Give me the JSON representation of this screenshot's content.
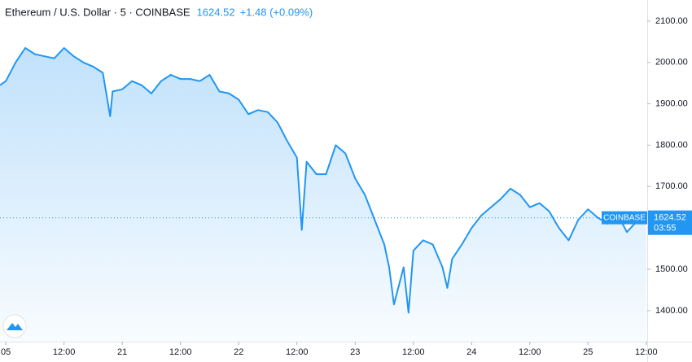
{
  "chart_data": {
    "type": "area",
    "title": "Ethereum / U.S. Dollar · 5 · COINBASE",
    "last_price": 1624.52,
    "change_label": "+1.48 (+0.09%)",
    "price_source": "COINBASE",
    "countdown": "03:55",
    "color": "#2196f3",
    "x": [
      -1.2,
      0,
      2,
      4,
      6,
      8,
      10,
      12,
      14,
      16,
      18,
      20,
      21.5,
      22,
      24,
      26,
      28,
      30,
      32,
      34,
      36,
      38,
      40,
      42,
      44,
      46,
      48,
      50,
      52,
      54,
      56,
      58,
      60,
      61,
      62,
      64,
      66,
      68,
      70,
      72,
      74,
      76,
      78,
      79,
      80,
      82,
      83,
      84,
      86,
      88,
      90,
      91,
      92,
      94,
      96,
      98,
      100,
      102,
      104,
      106,
      108,
      110,
      112,
      114,
      116,
      118,
      120,
      122,
      124,
      126,
      128,
      130,
      132
    ],
    "values": [
      1945,
      1955,
      2000,
      2035,
      2020,
      2015,
      2010,
      2035,
      2015,
      2000,
      1990,
      1975,
      1870,
      1930,
      1935,
      1955,
      1945,
      1925,
      1955,
      1970,
      1960,
      1960,
      1955,
      1970,
      1930,
      1925,
      1910,
      1875,
      1885,
      1880,
      1855,
      1810,
      1770,
      1595,
      1760,
      1730,
      1730,
      1800,
      1780,
      1720,
      1680,
      1620,
      1560,
      1505,
      1415,
      1505,
      1395,
      1545,
      1570,
      1560,
      1505,
      1455,
      1525,
      1560,
      1600,
      1630,
      1650,
      1670,
      1695,
      1680,
      1650,
      1660,
      1640,
      1600,
      1570,
      1620,
      1645,
      1625,
      1610,
      1635,
      1590,
      1615,
      1624.52
    ],
    "xlim": [
      -1.2,
      132.2
    ],
    "ylim": [
      1325,
      2151
    ],
    "xticks": [
      {
        "value": 0,
        "label": "05"
      },
      {
        "value": 12,
        "label": "12:00"
      },
      {
        "value": 24,
        "label": "21"
      },
      {
        "value": 36,
        "label": "12:00"
      },
      {
        "value": 48,
        "label": "22"
      },
      {
        "value": 60,
        "label": "12:00"
      },
      {
        "value": 72,
        "label": "23"
      },
      {
        "value": 84,
        "label": "12:00"
      },
      {
        "value": 96,
        "label": "24"
      },
      {
        "value": 108,
        "label": "12:00"
      },
      {
        "value": 120,
        "label": "25"
      },
      {
        "value": 132,
        "label": "12:00"
      }
    ],
    "yticks": [
      {
        "value": 1400,
        "label": "1400.00"
      },
      {
        "value": 1500,
        "label": "1500.00"
      },
      {
        "value": 1600,
        "label": "1600.00"
      },
      {
        "value": 1700,
        "label": "1700.00"
      },
      {
        "value": 1800,
        "label": "1800.00"
      },
      {
        "value": 1900,
        "label": "1900.00"
      },
      {
        "value": 2000,
        "label": "2000.00"
      },
      {
        "value": 2100,
        "label": "2100.00"
      }
    ]
  }
}
